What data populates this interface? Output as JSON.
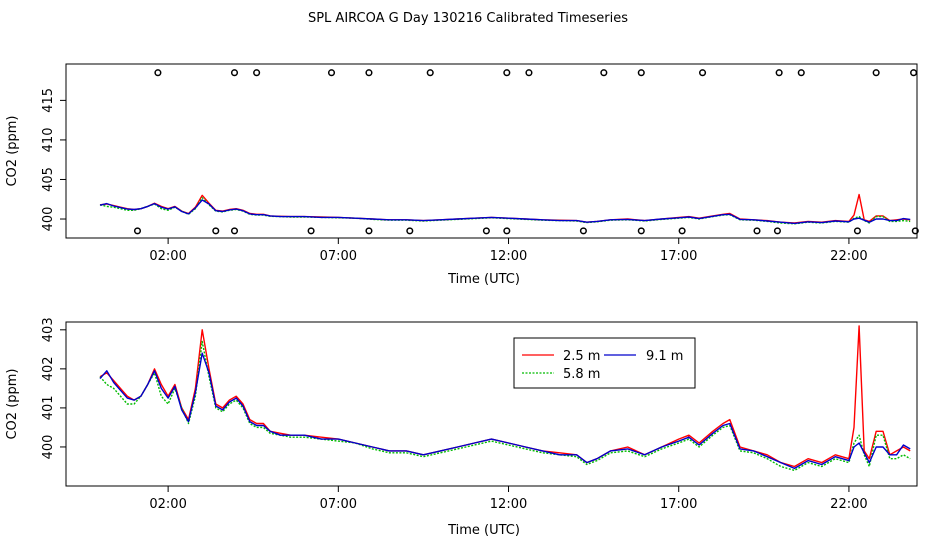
{
  "title": "SPL AIRCOA G  Day 130216  Calibrated Timeseries",
  "colors": {
    "s25": "#ff0000",
    "s58": "#00bb00",
    "s91": "#0000cc"
  },
  "chart_data": [
    {
      "type": "line",
      "panel": "top",
      "xlabel": "Time (UTC)",
      "ylabel": "CO2 (ppm)",
      "xlim": [
        -1.0,
        24.0
      ],
      "ylim": [
        397.6,
        419.6
      ],
      "xticks": [
        2,
        7,
        12,
        17,
        22
      ],
      "xtick_labels": [
        "02:00",
        "07:00",
        "12:00",
        "17:00",
        "22:00"
      ],
      "yticks": [
        400,
        405,
        410,
        415
      ],
      "ytick_labels": [
        "400",
        "405",
        "410",
        "415"
      ],
      "markers_high": {
        "y": 418.5,
        "x": [
          1.7,
          3.95,
          4.6,
          6.8,
          7.9,
          9.7,
          11.95,
          12.6,
          14.8,
          15.9,
          17.7,
          19.95,
          20.6,
          22.8,
          23.9
        ]
      },
      "markers_low": {
        "y": 398.5,
        "x": [
          1.1,
          3.4,
          3.95,
          6.2,
          7.9,
          9.1,
          11.35,
          11.95,
          14.2,
          15.9,
          17.1,
          19.3,
          19.9,
          22.25,
          23.95
        ]
      }
    },
    {
      "type": "line",
      "panel": "bottom",
      "xlabel": "Time (UTC)",
      "ylabel": "CO2 (ppm)",
      "xlim": [
        -1.0,
        24.0
      ],
      "ylim": [
        399.0,
        403.2
      ],
      "xticks": [
        2,
        7,
        12,
        17,
        22
      ],
      "xtick_labels": [
        "02:00",
        "07:00",
        "12:00",
        "17:00",
        "22:00"
      ],
      "yticks": [
        400,
        401,
        402,
        403
      ],
      "ytick_labels": [
        "400",
        "401",
        "402",
        "403"
      ],
      "legend": {
        "position": "top-center",
        "entries": [
          "2.5 m",
          "9.1 m",
          "5.8 m"
        ]
      }
    }
  ],
  "series": [
    {
      "name": "2.5 m",
      "color": "#ff0000",
      "points": [
        [
          0.0,
          401.8
        ],
        [
          0.2,
          401.9
        ],
        [
          0.4,
          401.7
        ],
        [
          0.6,
          401.5
        ],
        [
          0.8,
          401.3
        ],
        [
          1.0,
          401.2
        ],
        [
          1.2,
          401.3
        ],
        [
          1.4,
          401.6
        ],
        [
          1.6,
          402.0
        ],
        [
          1.8,
          401.6
        ],
        [
          2.0,
          401.3
        ],
        [
          2.2,
          401.6
        ],
        [
          2.4,
          401.0
        ],
        [
          2.6,
          400.7
        ],
        [
          2.8,
          401.5
        ],
        [
          3.0,
          403.0
        ],
        [
          3.2,
          402.0
        ],
        [
          3.4,
          401.1
        ],
        [
          3.6,
          401.0
        ],
        [
          3.8,
          401.2
        ],
        [
          4.0,
          401.3
        ],
        [
          4.2,
          401.1
        ],
        [
          4.4,
          400.7
        ],
        [
          4.6,
          400.6
        ],
        [
          4.8,
          400.6
        ],
        [
          5.0,
          400.4
        ],
        [
          5.3,
          400.35
        ],
        [
          5.6,
          400.3
        ],
        [
          6.0,
          400.3
        ],
        [
          6.5,
          400.25
        ],
        [
          7.0,
          400.2
        ],
        [
          7.5,
          400.1
        ],
        [
          8.0,
          400.0
        ],
        [
          8.5,
          399.9
        ],
        [
          9.0,
          399.9
        ],
        [
          9.5,
          399.8
        ],
        [
          10.0,
          399.9
        ],
        [
          10.5,
          400.0
        ],
        [
          11.0,
          400.1
        ],
        [
          11.5,
          400.2
        ],
        [
          12.0,
          400.1
        ],
        [
          12.5,
          400.0
        ],
        [
          13.0,
          399.9
        ],
        [
          13.5,
          399.85
        ],
        [
          14.0,
          399.8
        ],
        [
          14.3,
          399.6
        ],
        [
          14.6,
          399.7
        ],
        [
          15.0,
          399.9
        ],
        [
          15.5,
          400.0
        ],
        [
          16.0,
          399.8
        ],
        [
          16.5,
          400.0
        ],
        [
          17.0,
          400.2
        ],
        [
          17.3,
          400.3
        ],
        [
          17.6,
          400.1
        ],
        [
          18.0,
          400.4
        ],
        [
          18.3,
          400.6
        ],
        [
          18.5,
          400.7
        ],
        [
          18.8,
          400.0
        ],
        [
          19.2,
          399.9
        ],
        [
          19.6,
          399.8
        ],
        [
          20.0,
          399.6
        ],
        [
          20.4,
          399.5
        ],
        [
          20.8,
          399.7
        ],
        [
          21.2,
          399.6
        ],
        [
          21.6,
          399.8
        ],
        [
          22.0,
          399.7
        ],
        [
          22.15,
          400.5
        ],
        [
          22.3,
          403.1
        ],
        [
          22.45,
          399.9
        ],
        [
          22.6,
          399.7
        ],
        [
          22.8,
          400.4
        ],
        [
          23.0,
          400.4
        ],
        [
          23.2,
          399.8
        ],
        [
          23.4,
          399.9
        ],
        [
          23.6,
          400.0
        ],
        [
          23.8,
          399.9
        ]
      ]
    },
    {
      "name": "5.8 m",
      "color": "#00bb00",
      "points": [
        [
          0.0,
          401.8
        ],
        [
          0.2,
          401.6
        ],
        [
          0.4,
          401.5
        ],
        [
          0.6,
          401.3
        ],
        [
          0.8,
          401.1
        ],
        [
          1.0,
          401.1
        ],
        [
          1.2,
          401.3
        ],
        [
          1.4,
          401.6
        ],
        [
          1.6,
          401.9
        ],
        [
          1.8,
          401.3
        ],
        [
          2.0,
          401.1
        ],
        [
          2.2,
          401.5
        ],
        [
          2.4,
          401.0
        ],
        [
          2.6,
          400.6
        ],
        [
          2.8,
          401.3
        ],
        [
          3.0,
          402.7
        ],
        [
          3.2,
          401.8
        ],
        [
          3.4,
          401.0
        ],
        [
          3.6,
          400.9
        ],
        [
          3.8,
          401.1
        ],
        [
          4.0,
          401.2
        ],
        [
          4.2,
          401.0
        ],
        [
          4.4,
          400.6
        ],
        [
          4.6,
          400.5
        ],
        [
          4.8,
          400.5
        ],
        [
          5.0,
          400.35
        ],
        [
          5.3,
          400.3
        ],
        [
          5.6,
          400.25
        ],
        [
          6.0,
          400.25
        ],
        [
          6.5,
          400.2
        ],
        [
          7.0,
          400.15
        ],
        [
          7.5,
          400.1
        ],
        [
          8.0,
          399.95
        ],
        [
          8.5,
          399.85
        ],
        [
          9.0,
          399.85
        ],
        [
          9.5,
          399.75
        ],
        [
          10.0,
          399.85
        ],
        [
          10.5,
          399.95
        ],
        [
          11.0,
          400.05
        ],
        [
          11.5,
          400.15
        ],
        [
          12.0,
          400.05
        ],
        [
          12.5,
          399.95
        ],
        [
          13.0,
          399.85
        ],
        [
          13.5,
          399.8
        ],
        [
          14.0,
          399.75
        ],
        [
          14.3,
          399.55
        ],
        [
          14.6,
          399.65
        ],
        [
          15.0,
          399.85
        ],
        [
          15.5,
          399.9
        ],
        [
          16.0,
          399.75
        ],
        [
          16.5,
          399.95
        ],
        [
          17.0,
          400.1
        ],
        [
          17.3,
          400.2
        ],
        [
          17.6,
          400.0
        ],
        [
          18.0,
          400.3
        ],
        [
          18.3,
          400.5
        ],
        [
          18.5,
          400.55
        ],
        [
          18.8,
          399.9
        ],
        [
          19.2,
          399.85
        ],
        [
          19.6,
          399.7
        ],
        [
          20.0,
          399.5
        ],
        [
          20.4,
          399.4
        ],
        [
          20.8,
          399.6
        ],
        [
          21.2,
          399.5
        ],
        [
          21.6,
          399.7
        ],
        [
          22.0,
          399.6
        ],
        [
          22.15,
          400.1
        ],
        [
          22.3,
          400.3
        ],
        [
          22.45,
          399.8
        ],
        [
          22.6,
          399.5
        ],
        [
          22.8,
          400.3
        ],
        [
          23.0,
          400.3
        ],
        [
          23.2,
          399.7
        ],
        [
          23.4,
          399.7
        ],
        [
          23.6,
          399.8
        ],
        [
          23.8,
          399.7
        ]
      ]
    },
    {
      "name": "9.1 m",
      "color": "#0000cc",
      "points": [
        [
          0.0,
          401.75
        ],
        [
          0.2,
          401.95
        ],
        [
          0.4,
          401.65
        ],
        [
          0.6,
          401.45
        ],
        [
          0.8,
          401.25
        ],
        [
          1.0,
          401.2
        ],
        [
          1.2,
          401.3
        ],
        [
          1.4,
          401.6
        ],
        [
          1.6,
          401.95
        ],
        [
          1.8,
          401.5
        ],
        [
          2.0,
          401.25
        ],
        [
          2.2,
          401.55
        ],
        [
          2.4,
          400.95
        ],
        [
          2.6,
          400.65
        ],
        [
          2.8,
          401.4
        ],
        [
          3.0,
          402.4
        ],
        [
          3.2,
          401.9
        ],
        [
          3.4,
          401.05
        ],
        [
          3.6,
          400.95
        ],
        [
          3.8,
          401.15
        ],
        [
          4.0,
          401.25
        ],
        [
          4.2,
          401.05
        ],
        [
          4.4,
          400.65
        ],
        [
          4.6,
          400.55
        ],
        [
          4.8,
          400.55
        ],
        [
          5.0,
          400.4
        ],
        [
          5.3,
          400.3
        ],
        [
          5.6,
          400.3
        ],
        [
          6.0,
          400.3
        ],
        [
          6.5,
          400.2
        ],
        [
          7.0,
          400.2
        ],
        [
          7.5,
          400.1
        ],
        [
          8.0,
          400.0
        ],
        [
          8.5,
          399.9
        ],
        [
          9.0,
          399.9
        ],
        [
          9.5,
          399.8
        ],
        [
          10.0,
          399.9
        ],
        [
          10.5,
          400.0
        ],
        [
          11.0,
          400.1
        ],
        [
          11.5,
          400.2
        ],
        [
          12.0,
          400.1
        ],
        [
          12.5,
          400.0
        ],
        [
          13.0,
          399.9
        ],
        [
          13.5,
          399.8
        ],
        [
          14.0,
          399.8
        ],
        [
          14.3,
          399.6
        ],
        [
          14.6,
          399.7
        ],
        [
          15.0,
          399.9
        ],
        [
          15.5,
          399.95
        ],
        [
          16.0,
          399.8
        ],
        [
          16.5,
          400.0
        ],
        [
          17.0,
          400.15
        ],
        [
          17.3,
          400.25
        ],
        [
          17.6,
          400.05
        ],
        [
          18.0,
          400.35
        ],
        [
          18.3,
          400.55
        ],
        [
          18.5,
          400.6
        ],
        [
          18.8,
          399.95
        ],
        [
          19.2,
          399.9
        ],
        [
          19.6,
          399.75
        ],
        [
          20.0,
          399.6
        ],
        [
          20.4,
          399.45
        ],
        [
          20.8,
          399.65
        ],
        [
          21.2,
          399.55
        ],
        [
          21.6,
          399.75
        ],
        [
          22.0,
          399.65
        ],
        [
          22.15,
          400.0
        ],
        [
          22.3,
          400.1
        ],
        [
          22.45,
          399.85
        ],
        [
          22.6,
          399.6
        ],
        [
          22.8,
          400.0
        ],
        [
          23.0,
          400.0
        ],
        [
          23.2,
          399.8
        ],
        [
          23.4,
          399.8
        ],
        [
          23.6,
          400.05
        ],
        [
          23.8,
          399.95
        ]
      ]
    }
  ]
}
